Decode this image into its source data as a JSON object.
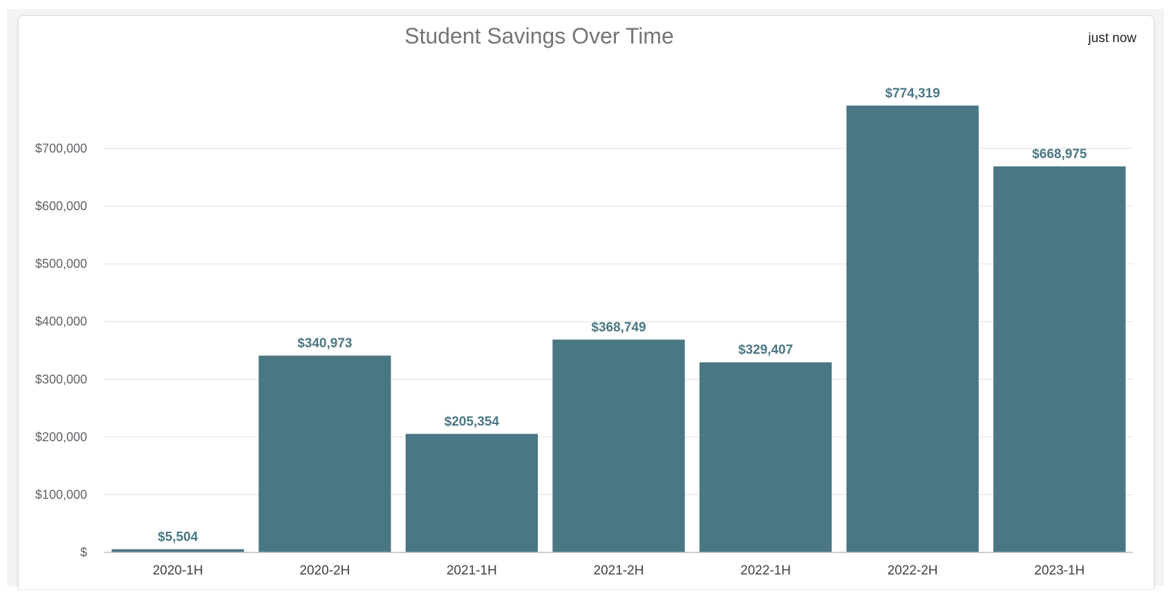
{
  "header": {
    "title": "Student Savings Over Time",
    "timestamp": "just now"
  },
  "colors": {
    "bar": "#4a7784",
    "data_label": "#4a7784",
    "grid": "#e0e0e0"
  },
  "chart_data": {
    "type": "bar",
    "title": "Student Savings Over Time",
    "xlabel": "",
    "ylabel": "",
    "categories": [
      "2020-1H",
      "2020-2H",
      "2021-1H",
      "2021-2H",
      "2022-1H",
      "2022-2H",
      "2023-1H"
    ],
    "values": [
      5504,
      340973,
      205354,
      368749,
      329407,
      774319,
      668975
    ],
    "data_labels": [
      "$5,504",
      "$340,973",
      "$205,354",
      "$368,749",
      "$329,407",
      "$774,319",
      "$668,975"
    ],
    "yticks": [
      0,
      100000,
      200000,
      300000,
      400000,
      500000,
      600000,
      700000
    ],
    "ytick_labels": [
      "$",
      "$100,000",
      "$200,000",
      "$300,000",
      "$400,000",
      "$500,000",
      "$600,000",
      "$700,000"
    ],
    "ylim": [
      0,
      700000
    ],
    "grid": true,
    "legend": "none"
  }
}
